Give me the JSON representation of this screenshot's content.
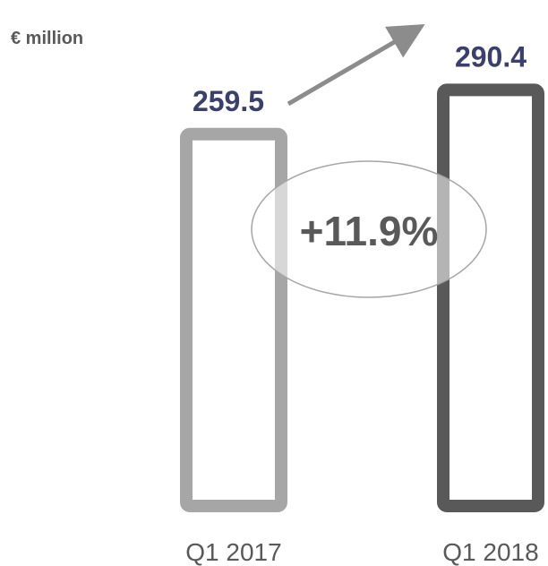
{
  "chart_data": {
    "type": "bar",
    "unit_label": "€ million",
    "categories": [
      "Q1 2017",
      "Q1 2018"
    ],
    "values": [
      259.5,
      290.4
    ],
    "value_labels": [
      "259.5",
      "290.4"
    ],
    "change_label": "+11.9%",
    "bar_colors": [
      "#a6a6a6",
      "#595959"
    ],
    "label_color": "#3b3f6e",
    "arrow_color": "#8c8c8c",
    "grid": false,
    "legend": "none"
  }
}
